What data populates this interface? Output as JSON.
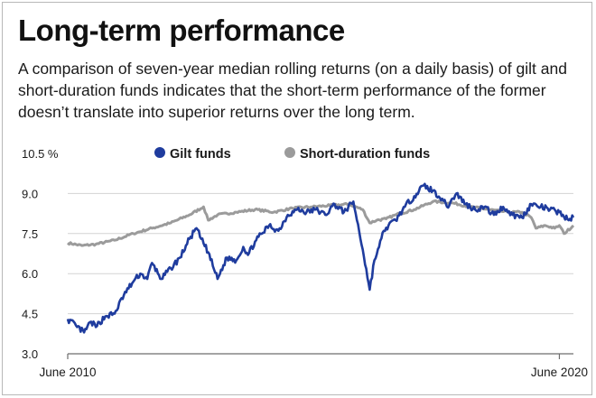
{
  "header": {
    "title": "Long-term performance",
    "subtitle": "A comparison of seven-year median rolling returns (on a daily basis) of gilt and short-duration funds indicates that the short-term performance of the former doesn’t translate into superior returns over the long term."
  },
  "colors": {
    "gilt": "#1f3c9e",
    "short_duration": "#9b9b9b",
    "grid": "#d3d3d3",
    "axis": "#6e6e6e",
    "text": "#1a1a1a"
  },
  "chart_data": {
    "type": "line",
    "title": "",
    "xlabel": "",
    "ylabel": "",
    "y_unit": "%",
    "ylim": [
      3.0,
      10.5
    ],
    "yticks": [
      3.0,
      4.5,
      6.0,
      7.5,
      9.0,
      10.5
    ],
    "ytick_labels": [
      "3.0",
      "4.5",
      "6.0",
      "7.5",
      "9.0",
      "10.5 %"
    ],
    "xlim": [
      2010.0,
      2020.8
    ],
    "x_tick_labels": [
      {
        "x": 2010.0,
        "label": "June 2010"
      },
      {
        "x": 2020.5,
        "label": "June 2020"
      }
    ],
    "grid": true,
    "legend": "top-center",
    "series": [
      {
        "name": "Gilt funds",
        "color": "#1f3c9e",
        "x": [
          2010.0,
          2010.2,
          2010.35,
          2010.5,
          2010.6,
          2010.8,
          2011.0,
          2011.2,
          2011.4,
          2011.55,
          2011.7,
          2011.8,
          2012.0,
          2012.2,
          2012.4,
          2012.6,
          2012.75,
          2012.85,
          2013.0,
          2013.2,
          2013.4,
          2013.6,
          2013.75,
          2013.85,
          2014.0,
          2014.15,
          2014.3,
          2014.5,
          2014.7,
          2014.9,
          2015.1,
          2015.3,
          2015.5,
          2015.7,
          2015.9,
          2016.1,
          2016.3,
          2016.45,
          2016.55,
          2016.65,
          2016.75,
          2016.85,
          2017.0,
          2017.2,
          2017.4,
          2017.6,
          2017.8,
          2018.0,
          2018.1,
          2018.3,
          2018.5,
          2018.7,
          2018.9,
          2019.1,
          2019.3,
          2019.5,
          2019.7,
          2019.9,
          2020.1,
          2020.3,
          2020.5,
          2020.7,
          2020.8
        ],
        "y": [
          4.3,
          4.0,
          3.8,
          4.2,
          4.0,
          4.4,
          4.5,
          5.2,
          5.7,
          6.0,
          5.8,
          6.4,
          5.8,
          6.2,
          6.6,
          7.3,
          7.7,
          7.3,
          6.8,
          5.8,
          6.6,
          6.5,
          7.0,
          6.7,
          7.2,
          7.5,
          7.8,
          7.6,
          8.2,
          8.4,
          8.3,
          8.4,
          8.2,
          8.6,
          8.3,
          8.7,
          6.9,
          5.4,
          6.5,
          7.0,
          7.6,
          7.8,
          8.0,
          8.5,
          8.9,
          9.3,
          9.1,
          8.8,
          8.5,
          9.0,
          8.6,
          8.4,
          8.5,
          8.2,
          8.5,
          8.2,
          8.1,
          8.6,
          8.5,
          8.4,
          8.3,
          8.0,
          8.1
        ]
      },
      {
        "name": "Short-duration funds",
        "color": "#9b9b9b",
        "x": [
          2010.0,
          2010.3,
          2010.6,
          2011.0,
          2011.4,
          2011.8,
          2012.2,
          2012.6,
          2012.9,
          2013.0,
          2013.2,
          2013.6,
          2014.0,
          2014.4,
          2014.8,
          2015.2,
          2015.6,
          2016.0,
          2016.3,
          2016.45,
          2016.6,
          2016.8,
          2017.0,
          2017.4,
          2017.8,
          2018.2,
          2018.6,
          2019.0,
          2019.4,
          2019.7,
          2019.9,
          2020.0,
          2020.2,
          2020.4,
          2020.5,
          2020.6,
          2020.8
        ],
        "y": [
          7.15,
          7.05,
          7.1,
          7.25,
          7.5,
          7.7,
          7.9,
          8.2,
          8.5,
          8.0,
          8.2,
          8.3,
          8.4,
          8.3,
          8.45,
          8.5,
          8.55,
          8.6,
          8.4,
          7.9,
          8.0,
          8.05,
          8.2,
          8.4,
          8.7,
          8.65,
          8.5,
          8.4,
          8.3,
          8.3,
          8.1,
          7.7,
          7.8,
          7.7,
          7.8,
          7.5,
          7.8
        ]
      }
    ]
  }
}
